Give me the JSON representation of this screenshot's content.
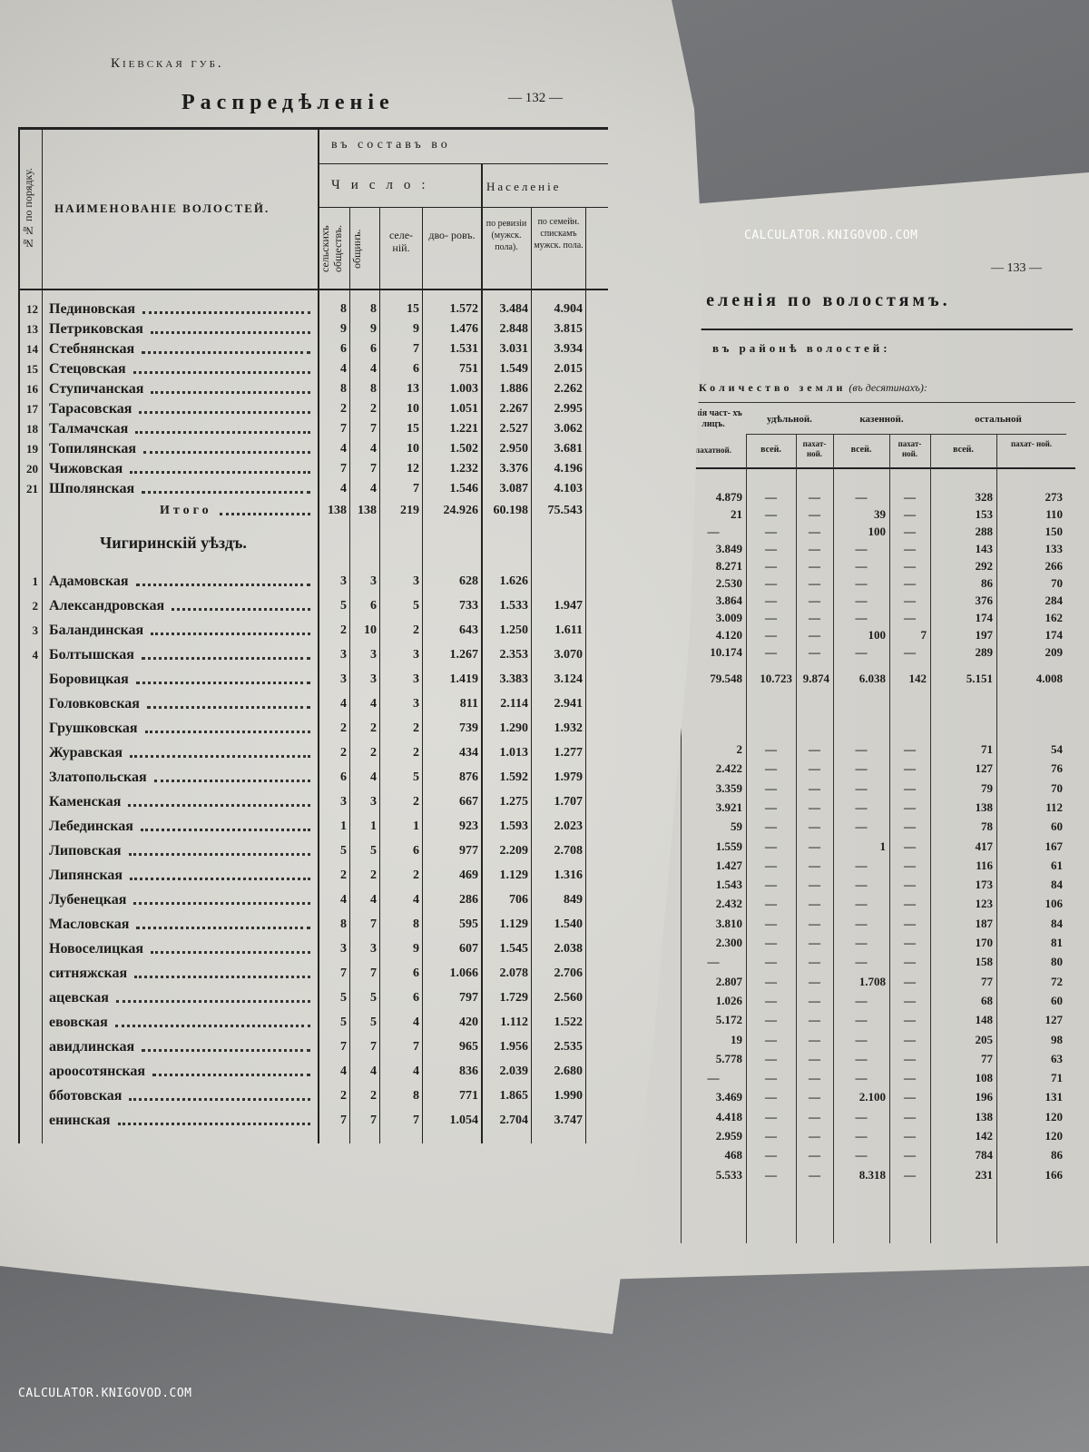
{
  "watermark": "CALCULATOR.KNIGOVOD.COM",
  "left_page": {
    "running_head": "Кіевская губ.",
    "page_number": "— 132 —",
    "title_fragment": "Распредѣленіе",
    "header": {
      "no_col": "№№ по порядку.",
      "name_col": "НАИМЕНОВАНІЕ ВОЛОСТЕЙ.",
      "group": "въ составъ во",
      "count_group": "Число:",
      "sel_obsh": "сельскихъ обществъ.",
      "obshin": "общинъ.",
      "selenii": "селе- ній.",
      "dvorov": "дво- ровъ.",
      "population_group": "Населеніе",
      "reviz": "по ревизіи (мужск. пола).",
      "semeyn": "по семейн. спискамъ мужск. пола."
    },
    "section1": {
      "rows": [
        {
          "no": "12",
          "name": "Пединовская"
        },
        {
          "no": "13",
          "name": "Петриковская"
        },
        {
          "no": "14",
          "name": "Стебнянская"
        },
        {
          "no": "15",
          "name": "Стецовская"
        },
        {
          "no": "16",
          "name": "Ступичанская"
        },
        {
          "no": "17",
          "name": "Тарасовская"
        },
        {
          "no": "18",
          "name": "Талмачская"
        },
        {
          "no": "19",
          "name": "Топилянская"
        },
        {
          "no": "20",
          "name": "Чижовская"
        },
        {
          "no": "21",
          "name": "Шполянская"
        }
      ],
      "columns": {
        "sel_obsh": [
          "8",
          "9",
          "6",
          "4",
          "8",
          "2",
          "7",
          "4",
          "7",
          "4"
        ],
        "obshin": [
          "8",
          "9",
          "6",
          "4",
          "8",
          "2",
          "7",
          "4",
          "7",
          "4"
        ],
        "selenii": [
          "15",
          "9",
          "7",
          "6",
          "13",
          "10",
          "15",
          "10",
          "12",
          "7"
        ],
        "dvorov": [
          "1.572",
          "1.476",
          "1.531",
          "751",
          "1.003",
          "1.051",
          "1.221",
          "1.502",
          "1.232",
          "1.546"
        ],
        "reviz": [
          "3.484",
          "2.848",
          "3.031",
          "1.549",
          "1.886",
          "2.267",
          "2.527",
          "2.950",
          "3.376",
          "3.087"
        ],
        "semeyn": [
          "4.904",
          "3.815",
          "3.934",
          "2.015",
          "2.262",
          "2.995",
          "3.062",
          "3.681",
          "4.196",
          "4.103"
        ]
      },
      "totals_label": "Итого",
      "totals": {
        "sel_obsh": "138",
        "obshin": "138",
        "selenii": "219",
        "dvorov": "24.926",
        "reviz": "60.198",
        "semeyn": "75.543"
      }
    },
    "section2": {
      "title": "Чигиринскій уѣздъ.",
      "rows": [
        {
          "no": "1",
          "name": "Адамовская"
        },
        {
          "no": "2",
          "name": "Александровская"
        },
        {
          "no": "3",
          "name": "Баландинская"
        },
        {
          "no": "4",
          "name": "Болтышская"
        },
        {
          "no": "",
          "name": "Боровицкая"
        },
        {
          "no": "",
          "name": "Головковская"
        },
        {
          "no": "",
          "name": "Грушковская"
        },
        {
          "no": "",
          "name": "Журавская"
        },
        {
          "no": "",
          "name": "Златопольская"
        },
        {
          "no": "",
          "name": "Каменская"
        },
        {
          "no": "",
          "name": "Лебединская"
        },
        {
          "no": "",
          "name": "Липовская"
        },
        {
          "no": "",
          "name": "Липянская"
        },
        {
          "no": "",
          "name": "Лубенецкая"
        },
        {
          "no": "",
          "name": "Масловская"
        },
        {
          "no": "",
          "name": "Новоселицкая"
        },
        {
          "no": "",
          "name": "ситняжская"
        },
        {
          "no": "",
          "name": "ацевская"
        },
        {
          "no": "",
          "name": "евовская"
        },
        {
          "no": "",
          "name": "авидлинская"
        },
        {
          "no": "",
          "name": "ароосотянская"
        },
        {
          "no": "",
          "name": "бботовская"
        },
        {
          "no": "",
          "name": "енинская"
        }
      ],
      "columns": {
        "sel_obsh": [
          "3",
          "5",
          "2",
          "3",
          "3",
          "4",
          "2",
          "2",
          "6",
          "3",
          "1",
          "5",
          "2",
          "4",
          "8",
          "3",
          "7",
          "5",
          "5",
          "7",
          "4",
          "2",
          "7"
        ],
        "obshin": [
          "3",
          "6",
          "10",
          "3",
          "3",
          "4",
          "2",
          "2",
          "4",
          "3",
          "1",
          "5",
          "2",
          "4",
          "7",
          "3",
          "7",
          "5",
          "5",
          "7",
          "4",
          "2",
          "7"
        ],
        "selenii": [
          "3",
          "5",
          "2",
          "3",
          "3",
          "3",
          "2",
          "2",
          "5",
          "2",
          "1",
          "6",
          "2",
          "4",
          "8",
          "9",
          "6",
          "6",
          "4",
          "7",
          "4",
          "8",
          "7"
        ],
        "dvorov": [
          "628",
          "733",
          "643",
          "1.267",
          "1.419",
          "811",
          "739",
          "434",
          "876",
          "667",
          "923",
          "977",
          "469",
          "286",
          "595",
          "607",
          "1.066",
          "797",
          "420",
          "965",
          "836",
          "771",
          "1.054"
        ],
        "reviz": [
          "1.626",
          "1.533",
          "1.250",
          "2.353",
          "3.383",
          "2.114",
          "1.290",
          "1.013",
          "1.592",
          "1.275",
          "1.593",
          "2.209",
          "1.129",
          "706",
          "1.129",
          "1.545",
          "2.078",
          "1.729",
          "1.112",
          "1.956",
          "2.039",
          "1.865",
          "2.704"
        ],
        "semeyn": [
          "",
          "1.947",
          "1.611",
          "3.070",
          "3.124",
          "2.941",
          "1.932",
          "1.277",
          "1.979",
          "1.707",
          "2.023",
          "2.708",
          "1.316",
          "849",
          "1.540",
          "2.038",
          "2.706",
          "2.560",
          "1.522",
          "2.535",
          "2.680",
          "1.990",
          "3.747"
        ]
      }
    }
  },
  "right_page": {
    "page_number": "— 133 —",
    "title_fragment": "селенія по волостямъ.",
    "group": "въ районѣ волостей:",
    "land_group": "Количество земли",
    "land_unit": "(въ десятинахъ):",
    "header": {
      "private": "дѣнія част- хъ лицъ.",
      "private_arable": "пахатной.",
      "appanage": "удѣльной.",
      "state": "казенной.",
      "other": "остальной",
      "all": "всей.",
      "arable": "пахат- ной."
    },
    "section1": {
      "columns": {
        "private_arable": [
          "4.879",
          "21",
          "—",
          "3.849",
          "8.271",
          "2.530",
          "3.864",
          "3.009",
          "4.120",
          "10.174"
        ],
        "appanage_all": [
          "—",
          "—",
          "—",
          "—",
          "—",
          "—",
          "—",
          "—",
          "—",
          "—"
        ],
        "appanage_arable": [
          "—",
          "—",
          "—",
          "—",
          "—",
          "—",
          "—",
          "—",
          "—",
          "—"
        ],
        "state_all": [
          "—",
          "39",
          "100",
          "—",
          "—",
          "—",
          "—",
          "—",
          "100",
          "—"
        ],
        "state_arable": [
          "—",
          "—",
          "—",
          "—",
          "—",
          "—",
          "—",
          "—",
          "7",
          "—"
        ],
        "other_all": [
          "328",
          "153",
          "288",
          "143",
          "292",
          "86",
          "376",
          "174",
          "197",
          "289"
        ],
        "other_arable": [
          "273",
          "110",
          "150",
          "133",
          "266",
          "70",
          "284",
          "162",
          "174",
          "209"
        ]
      },
      "totals": {
        "private_arable": "79.548",
        "appanage_all": "10.723",
        "appanage_arable": "9.874",
        "state_all": "6.038",
        "state_arable": "142",
        "other_all": "5.151",
        "other_arable": "4.008"
      }
    },
    "section2": {
      "columns": {
        "private_arable": [
          "2",
          "2.422",
          "3.359",
          "3.921",
          "59",
          "1.559",
          "1.427",
          "1.543",
          "2.432",
          "3.810",
          "2.300",
          "—",
          "2.807",
          "1.026",
          "5.172",
          "19",
          "5.778",
          "—",
          "3.469",
          "4.418",
          "2.959",
          "468",
          "5.533"
        ],
        "appanage_all": [
          "—",
          "—",
          "—",
          "—",
          "—",
          "—",
          "—",
          "—",
          "—",
          "—",
          "—",
          "—",
          "—",
          "—",
          "—",
          "—",
          "—",
          "—",
          "—",
          "—",
          "—",
          "—",
          "—"
        ],
        "appanage_arable": [
          "—",
          "—",
          "—",
          "—",
          "—",
          "—",
          "—",
          "—",
          "—",
          "—",
          "—",
          "—",
          "—",
          "—",
          "—",
          "—",
          "—",
          "—",
          "—",
          "—",
          "—",
          "—",
          "—"
        ],
        "state_all": [
          "—",
          "—",
          "—",
          "—",
          "—",
          "1",
          "—",
          "—",
          "—",
          "—",
          "—",
          "—",
          "1.708",
          "—",
          "—",
          "—",
          "—",
          "—",
          "2.100",
          "—",
          "—",
          "—",
          "8.318"
        ],
        "state_arable": [
          "—",
          "—",
          "—",
          "—",
          "—",
          "—",
          "—",
          "—",
          "—",
          "—",
          "—",
          "—",
          "—",
          "—",
          "—",
          "—",
          "—",
          "—",
          "—",
          "—",
          "—",
          "—",
          "—"
        ],
        "other_all": [
          "71",
          "127",
          "79",
          "138",
          "78",
          "417",
          "116",
          "173",
          "123",
          "187",
          "170",
          "158",
          "77",
          "68",
          "148",
          "205",
          "77",
          "108",
          "196",
          "138",
          "142",
          "784",
          "231"
        ],
        "other_arable": [
          "54",
          "76",
          "70",
          "112",
          "60",
          "167",
          "61",
          "84",
          "106",
          "84",
          "81",
          "80",
          "72",
          "60",
          "127",
          "98",
          "63",
          "71",
          "131",
          "120",
          "120",
          "86",
          "166"
        ]
      }
    }
  }
}
